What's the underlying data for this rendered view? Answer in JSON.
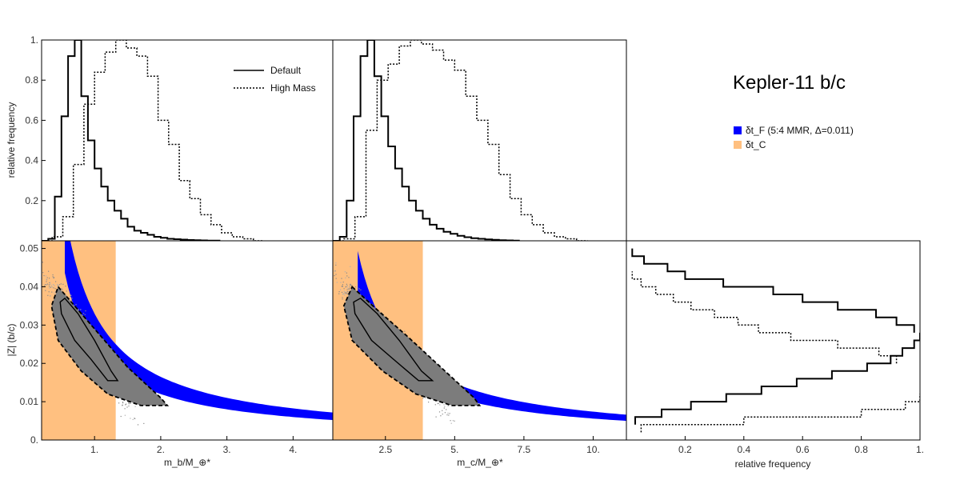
{
  "title": "Kepler-11 b/c",
  "legend": {
    "default_label": "Default",
    "highmass_label": "High Mass",
    "blue_label": "δt_F (5:4 MMR, Δ=0.011)",
    "orange_label": "δt_C",
    "blue_color": "#0000ff",
    "orange_color": "#ffc080"
  },
  "chart_data": [
    {
      "id": "hist_mb",
      "type": "histogram",
      "xlabel": "m_b/M_⊕*",
      "ylabel": "relative frequency",
      "xlim": [
        0.2,
        4.6
      ],
      "ylim": [
        0,
        1
      ],
      "yticks": [
        0.2,
        0.4,
        0.6,
        0.8,
        1.0
      ],
      "ytick_labels": [
        "0.2",
        "0.4",
        "0.6",
        "0.8",
        "1."
      ],
      "series": [
        {
          "name": "Default",
          "style": "solid",
          "bin_width": 0.1,
          "x0": 0.2,
          "values": [
            0.0,
            0.01,
            0.22,
            0.62,
            0.92,
            1.0,
            0.72,
            0.5,
            0.36,
            0.27,
            0.2,
            0.15,
            0.11,
            0.07,
            0.05,
            0.04,
            0.03,
            0.02,
            0.015,
            0.01,
            0.008,
            0.006,
            0.004,
            0.003,
            0.002,
            0.001,
            0.001
          ]
        },
        {
          "name": "High Mass",
          "style": "dotted",
          "bin_width": 0.16,
          "x0": 0.2,
          "values": [
            0.0,
            0.02,
            0.12,
            0.38,
            0.68,
            0.84,
            0.94,
            1.0,
            0.96,
            0.92,
            0.82,
            0.6,
            0.48,
            0.3,
            0.21,
            0.13,
            0.08,
            0.04,
            0.02,
            0.01,
            0.0
          ]
        }
      ]
    },
    {
      "id": "hist_mc",
      "type": "histogram",
      "xlabel": "m_c/M_⊕*",
      "xlim": [
        0.6,
        11.2
      ],
      "ylim": [
        0,
        1
      ],
      "series": [
        {
          "name": "Default",
          "style": "solid",
          "bin_width": 0.25,
          "x0": 0.6,
          "values": [
            0.0,
            0.02,
            0.2,
            0.62,
            0.92,
            1.0,
            0.82,
            0.62,
            0.47,
            0.36,
            0.27,
            0.2,
            0.15,
            0.11,
            0.08,
            0.06,
            0.045,
            0.035,
            0.025,
            0.018,
            0.013,
            0.01,
            0.007,
            0.005,
            0.003,
            0.002,
            0.001
          ]
        },
        {
          "name": "High Mass",
          "style": "dotted",
          "bin_width": 0.4,
          "x0": 0.6,
          "values": [
            0.0,
            0.01,
            0.12,
            0.55,
            0.8,
            0.88,
            0.97,
            1.0,
            0.98,
            0.95,
            0.9,
            0.85,
            0.72,
            0.6,
            0.48,
            0.33,
            0.21,
            0.13,
            0.08,
            0.04,
            0.02,
            0.01,
            0.0
          ]
        }
      ]
    },
    {
      "id": "scatter_mb",
      "type": "scatter",
      "xlabel": "m_b/M_⊕*",
      "ylabel": "|Z| (b/c)",
      "xlim": [
        0.2,
        4.6
      ],
      "ylim": [
        0,
        0.052
      ],
      "xticks": [
        1,
        2,
        3,
        4
      ],
      "xtick_labels": [
        "1.",
        "2.",
        "3.",
        "4."
      ],
      "yticks": [
        0,
        0.01,
        0.02,
        0.03,
        0.04,
        0.05
      ],
      "ytick_labels": [
        "0.",
        "0.01",
        "0.02",
        "0.03",
        "0.04",
        "0.05"
      ],
      "orange_band": [
        0.2,
        1.32
      ],
      "blue_band": {
        "k_low": 0.024,
        "k_high": 0.033,
        "x_min": 0.55
      },
      "contour_inner": [
        [
          0.55,
          0.037
        ],
        [
          0.75,
          0.033
        ],
        [
          1.0,
          0.026
        ],
        [
          1.25,
          0.018
        ],
        [
          1.35,
          0.0155
        ],
        [
          1.2,
          0.0155
        ],
        [
          0.95,
          0.021
        ],
        [
          0.7,
          0.026
        ],
        [
          0.5,
          0.033
        ],
        [
          0.48,
          0.036
        ]
      ],
      "contour_outer": [
        [
          0.45,
          0.04
        ],
        [
          0.75,
          0.034
        ],
        [
          1.1,
          0.027
        ],
        [
          1.5,
          0.019
        ],
        [
          2.0,
          0.011
        ],
        [
          2.1,
          0.009
        ],
        [
          1.7,
          0.009
        ],
        [
          1.2,
          0.012
        ],
        [
          0.8,
          0.018
        ],
        [
          0.45,
          0.026
        ],
        [
          0.35,
          0.035
        ]
      ]
    },
    {
      "id": "scatter_mc",
      "type": "scatter",
      "xlabel": "m_c/M_⊕*",
      "xlim": [
        0.6,
        11.2
      ],
      "ylim": [
        0,
        0.052
      ],
      "xticks": [
        2.5,
        5,
        7.5,
        10
      ],
      "xtick_labels": [
        "2.5",
        "5.",
        "7.5",
        "10."
      ],
      "orange_band": [
        0.6,
        3.85
      ],
      "blue_band": {
        "k_low": 0.056,
        "k_high": 0.074,
        "x_min": 1.5
      },
      "contour_inner": [
        [
          1.6,
          0.037
        ],
        [
          2.2,
          0.033
        ],
        [
          3.0,
          0.026
        ],
        [
          3.8,
          0.018
        ],
        [
          4.2,
          0.0155
        ],
        [
          3.7,
          0.0155
        ],
        [
          2.8,
          0.021
        ],
        [
          2.0,
          0.026
        ],
        [
          1.4,
          0.033
        ],
        [
          1.35,
          0.036
        ]
      ],
      "contour_outer": [
        [
          1.3,
          0.04
        ],
        [
          2.2,
          0.034
        ],
        [
          3.3,
          0.027
        ],
        [
          4.5,
          0.019
        ],
        [
          5.7,
          0.011
        ],
        [
          5.9,
          0.009
        ],
        [
          4.9,
          0.009
        ],
        [
          3.6,
          0.012
        ],
        [
          2.4,
          0.018
        ],
        [
          1.3,
          0.026
        ],
        [
          1.0,
          0.035
        ]
      ]
    },
    {
      "id": "hist_z",
      "type": "histogram",
      "orientation": "horizontal",
      "xlabel": "relative frequency",
      "xlim": [
        0,
        1
      ],
      "ylim": [
        0,
        0.052
      ],
      "xticks": [
        0.2,
        0.4,
        0.6,
        0.8,
        1.0
      ],
      "xtick_labels": [
        "0.2",
        "0.4",
        "0.6",
        "0.8",
        "1."
      ],
      "series": [
        {
          "name": "Default-upper",
          "style": "solid",
          "y0": 0.0,
          "bin_width": 0.002,
          "values": [
            0.0,
            0.0,
            0.0,
            0.0,
            0.0,
            0.0,
            0.0,
            0.0,
            0.0,
            0.0,
            0.0,
            0.0,
            0.0,
            0.0,
            0.98,
            0.92,
            0.85,
            0.72,
            0.6,
            0.5,
            0.33,
            0.2,
            0.14,
            0.06,
            0.02,
            0.0
          ]
        },
        {
          "name": "Default-lower",
          "style": "solid",
          "y0": 0.0,
          "bin_width": 0.002,
          "values": [
            0.0,
            0.0,
            0.03,
            0.12,
            0.22,
            0.34,
            0.46,
            0.58,
            0.7,
            0.82,
            0.9,
            0.94,
            0.98,
            1.0,
            0.0,
            0.0,
            0.0,
            0.0,
            0.0,
            0.0,
            0.0,
            0.0,
            0.0,
            0.0,
            0.0,
            0.0
          ]
        },
        {
          "name": "HighMass-upper",
          "style": "dotted",
          "y0": 0.0,
          "bin_width": 0.002,
          "values": [
            0.0,
            0.0,
            0.0,
            0.0,
            0.0,
            0.0,
            0.0,
            0.0,
            0.0,
            0.0,
            0.92,
            0.86,
            0.72,
            0.56,
            0.45,
            0.38,
            0.3,
            0.22,
            0.16,
            0.1,
            0.05,
            0.02,
            0.0,
            0.0,
            0.0,
            0.0
          ]
        },
        {
          "name": "HighMass-lower",
          "style": "dotted",
          "y0": 0.0,
          "bin_width": 0.002,
          "values": [
            0.0,
            0.05,
            0.4,
            0.8,
            0.95,
            1.0,
            0.0,
            0.0,
            0.0,
            0.0,
            0.0,
            0.0,
            0.0,
            0.0,
            0.0,
            0.0,
            0.0,
            0.0,
            0.0,
            0.0,
            0.0,
            0.0,
            0.0,
            0.0,
            0.0,
            0.0
          ]
        }
      ]
    }
  ]
}
